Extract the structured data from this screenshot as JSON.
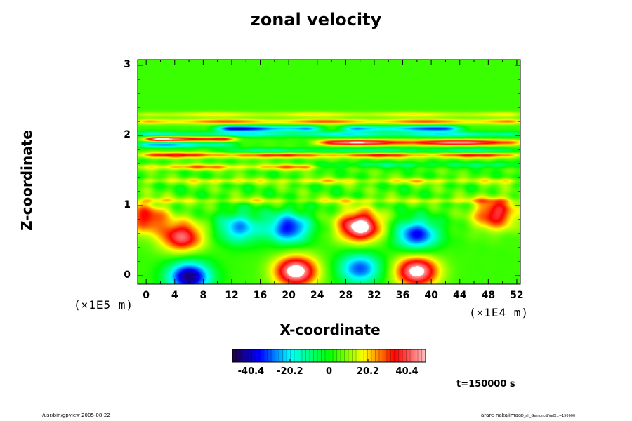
{
  "chart_data": {
    "type": "heatmap",
    "title": "zonal velocity",
    "xlabel": "X-coordinate",
    "ylabel": "Z-coordinate",
    "x_unit": "(×1E4 m)",
    "y_unit": "(×1E5 m)",
    "x_ticks": [
      "0",
      "4",
      "8",
      "12",
      "16",
      "20",
      "24",
      "28",
      "32",
      "36",
      "40",
      "44",
      "48",
      "52"
    ],
    "y_ticks": [
      "0",
      "1",
      "2",
      "3"
    ],
    "xlim": [
      -1.2,
      52.5
    ],
    "ylim": [
      -0.12,
      3.08
    ],
    "colorbar": {
      "ticks": [
        "-40.4",
        "-20.2",
        "0",
        "20.2",
        "40.4"
      ],
      "tick_values": [
        -40.4,
        -20.2,
        0,
        20.2,
        40.4
      ],
      "range": [
        -50,
        50
      ]
    },
    "background_value": 4,
    "bands": [
      {
        "z": 1.07,
        "value": 10,
        "x1": -1.2,
        "x2": 52.5
      },
      {
        "z": 1.35,
        "value": 12,
        "x1": -1.2,
        "x2": 52.5
      },
      {
        "z": 1.55,
        "value": 18,
        "x1": -1.2,
        "x2": 24
      },
      {
        "z": 1.58,
        "value": -10,
        "x1": 24,
        "x2": 52.5
      },
      {
        "z": 1.72,
        "value": 25,
        "x1": -1.2,
        "x2": 52.5
      },
      {
        "z": 1.78,
        "value": -15,
        "x1": 10,
        "x2": 52.5
      },
      {
        "z": 1.87,
        "value": -25,
        "x1": -1.2,
        "x2": 12
      },
      {
        "z": 1.9,
        "value": 35,
        "x1": 24,
        "x2": 52.5
      },
      {
        "z": 1.95,
        "value": 40,
        "x1": 0,
        "x2": 12
      },
      {
        "z": 2.02,
        "value": -20,
        "x1": -1.2,
        "x2": 52.5
      },
      {
        "z": 2.1,
        "value": -35,
        "x1": 10,
        "x2": 24
      },
      {
        "z": 2.1,
        "value": -30,
        "x1": 28,
        "x2": 44
      },
      {
        "z": 2.2,
        "value": 20,
        "x1": -1.2,
        "x2": 52.5
      },
      {
        "z": 2.3,
        "value": 12,
        "x1": -1.2,
        "x2": 52.5
      }
    ],
    "blobs": [
      {
        "x": 5,
        "z": 0.55,
        "value": 38
      },
      {
        "x": 6,
        "z": -0.02,
        "value": -50
      },
      {
        "x": 20,
        "z": 0.68,
        "value": -40
      },
      {
        "x": 21,
        "z": 0.06,
        "value": 50
      },
      {
        "x": 30,
        "z": 0.7,
        "value": 50
      },
      {
        "x": 30,
        "z": 0.1,
        "value": -35
      },
      {
        "x": 38,
        "z": 0.58,
        "value": -40
      },
      {
        "x": 38,
        "z": 0.06,
        "value": 48
      },
      {
        "x": 49,
        "z": 0.88,
        "value": 35
      },
      {
        "x": 0,
        "z": 0.82,
        "value": 30
      },
      {
        "x": 13,
        "z": 0.68,
        "value": -30
      }
    ]
  },
  "time_label": "t=150000 s",
  "footer": {
    "left": "/usr/bin/gpview 2005-08-22",
    "right_main": "arare-nakajima",
    "right_small": "GD_all_Geny.nc@VelX,t=150000"
  }
}
